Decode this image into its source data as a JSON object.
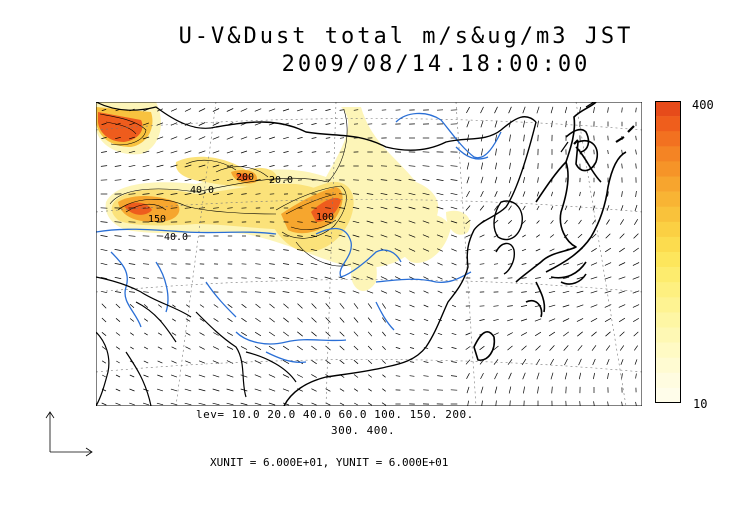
{
  "title": {
    "line1": "U-V&Dust total m/s&ug/m3 JST",
    "line2": "2009/08/14.18:00:00"
  },
  "colorbar": {
    "max_label": "400",
    "min_label": "10",
    "colors": [
      "#e64b1a",
      "#ef5e1c",
      "#f27120",
      "#f48424",
      "#f69428",
      "#f7a52e",
      "#f8b434",
      "#f9c23b",
      "#fbd043",
      "#fcdc4e",
      "#fde65c",
      "#fdec6e",
      "#fef080",
      "#fef392",
      "#fef6a4",
      "#fef8b4",
      "#fffac4",
      "#fffbd2",
      "#fffce0",
      "#fffdea"
    ]
  },
  "contour_levels": {
    "line1": "lev= 10.0 20.0 40.0 60.0 100. 150. 200.",
    "line2": "300. 400."
  },
  "units": "XUNIT = 6.000E+01, YUNIT = 6.000E+01",
  "map_labels": [
    "40.0",
    "20.0",
    "150",
    "100",
    "200"
  ],
  "colors": {
    "river": "#2a6fd6",
    "coast": "#000000",
    "dust_low": "#fdf5b8",
    "dust_high": "#e84e1b"
  }
}
